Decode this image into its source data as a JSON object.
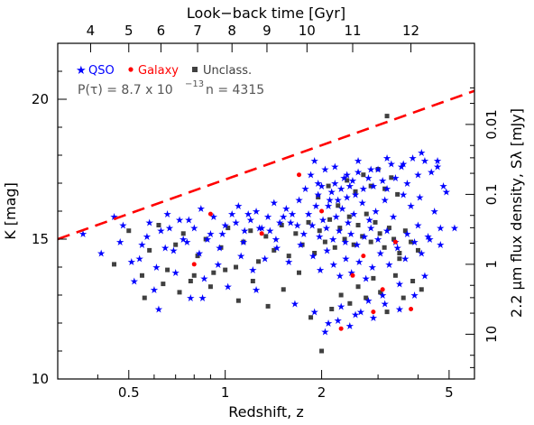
{
  "chart_data": {
    "type": "scatter",
    "title": "",
    "xlabel": "Redshift, z",
    "ylabel": "K [mag]",
    "top_label": "Look−back time [Gyr]",
    "right_label": "2.2 μm flux density, Sλ [mJy]",
    "x_scale": "log",
    "xlim": [
      0.3,
      6.0
    ],
    "ylim": [
      10,
      22
    ],
    "y_inverted": false,
    "x_ticks": [
      0.5,
      1,
      2,
      5
    ],
    "x_tick_labels": [
      "0.5",
      "1",
      "2",
      "5"
    ],
    "y_ticks": [
      10,
      15,
      20
    ],
    "y_tick_labels": [
      "10",
      "15",
      "20"
    ],
    "top_ticks": [
      4,
      5,
      6,
      7,
      8,
      9,
      10,
      11,
      12
    ],
    "top_tick_labels": [
      "4",
      "5",
      "6",
      "7",
      "8",
      "9",
      "10",
      "11",
      "12"
    ],
    "top_tick_redshifts": [
      0.38,
      0.5,
      0.63,
      0.82,
      1.05,
      1.35,
      1.8,
      2.5,
      3.8
    ],
    "right_ticks_mjy": [
      0.01,
      0.1,
      1,
      10
    ],
    "right_tick_labels": [
      "0.01",
      "0.1",
      "1",
      "10"
    ],
    "right_tick_kmag": [
      19.1,
      16.6,
      14.1,
      11.6
    ],
    "legend": [
      {
        "label": "QSO",
        "marker": "star",
        "color": "#0000ff"
      },
      {
        "label": "Galaxy",
        "marker": "dot",
        "color": "#ff0000"
      },
      {
        "label": "Unclass.",
        "marker": "square",
        "color": "#404040"
      }
    ],
    "legend_placement": "top-left",
    "annotation": {
      "p_text": "P(τ) = 8.7 x 10",
      "p_exp": "−13",
      "n_text": "n = 4315"
    },
    "limit_line": {
      "style": "dashed",
      "color": "#ff0000",
      "points": [
        [
          0.3,
          15.0
        ],
        [
          6.0,
          20.3
        ]
      ]
    },
    "grid": false,
    "series": [
      {
        "name": "QSO",
        "color": "#0000ff",
        "marker": "star",
        "x": [
          0.36,
          0.41,
          0.45,
          0.48,
          0.51,
          0.55,
          0.58,
          0.61,
          0.63,
          0.66,
          0.69,
          0.72,
          0.76,
          0.8,
          0.84,
          0.88,
          0.92,
          0.96,
          1.0,
          1.05,
          1.1,
          1.15,
          1.2,
          1.25,
          1.3,
          1.36,
          1.42,
          1.48,
          1.55,
          1.62,
          1.7,
          1.78,
          1.85,
          1.9,
          1.95,
          2.0,
          2.05,
          2.1,
          2.15,
          2.2,
          2.25,
          2.3,
          2.35,
          2.4,
          2.45,
          2.5,
          2.55,
          2.6,
          2.7,
          2.8,
          2.9,
          3.0,
          3.1,
          3.2,
          3.3,
          3.4,
          3.55,
          3.7,
          3.85,
          4.0,
          4.2,
          4.4,
          4.6,
          4.8,
          5.2,
          0.52,
          0.6,
          0.7,
          0.78,
          0.86,
          0.95,
          1.02,
          1.12,
          1.22,
          1.33,
          1.45,
          1.58,
          1.72,
          1.88,
          1.98,
          2.08,
          2.18,
          2.28,
          2.38,
          2.48,
          2.62,
          2.75,
          2.88,
          3.05,
          3.25,
          3.45,
          3.65,
          3.9,
          4.1,
          4.35,
          4.7,
          0.47,
          0.57,
          0.67,
          0.77,
          0.9,
          1.08,
          1.18,
          1.38,
          1.52,
          1.68,
          1.82,
          1.92,
          2.02,
          2.12,
          2.22,
          2.32,
          2.42,
          2.52,
          2.68,
          2.82,
          2.95,
          3.15,
          3.35,
          3.6,
          3.8,
          4.05,
          4.5,
          4.9,
          0.54,
          0.65,
          0.74,
          0.83,
          0.98,
          1.14,
          1.28,
          1.44,
          1.6,
          1.76,
          1.87,
          1.97,
          2.07,
          2.17,
          2.27,
          2.37,
          2.47,
          2.58,
          2.72,
          2.85,
          3.0,
          3.2,
          3.4,
          3.7,
          4.0,
          4.3,
          4.7,
          0.62,
          0.85,
          1.25,
          1.65,
          1.9,
          2.1,
          2.3,
          2.55,
          2.8,
          3.1,
          3.5,
          4.2,
          2.05,
          2.25,
          2.45,
          2.65,
          2.9,
          3.15,
          3.5,
          3.9,
          1.95,
          2.2,
          2.4,
          2.6,
          2.85,
          3.2,
          3.6,
          4.1,
          4.6
        ],
        "y": [
          15.2,
          14.5,
          15.8,
          15.5,
          14.2,
          14.8,
          15.6,
          14.0,
          15.3,
          15.9,
          14.6,
          15.7,
          14.9,
          15.4,
          16.1,
          15.0,
          15.8,
          14.7,
          15.5,
          15.9,
          16.2,
          15.3,
          15.7,
          16.0,
          15.4,
          15.8,
          16.3,
          15.6,
          16.1,
          15.9,
          16.4,
          16.8,
          17.3,
          17.8,
          16.6,
          16.9,
          17.5,
          16.2,
          16.7,
          17.0,
          16.4,
          16.8,
          17.2,
          16.5,
          16.9,
          17.1,
          16.6,
          17.4,
          16.8,
          17.2,
          16.9,
          17.5,
          17.1,
          16.8,
          17.7,
          17.2,
          17.6,
          17.0,
          17.9,
          17.3,
          17.8,
          17.4,
          17.6,
          16.9,
          15.4,
          13.5,
          13.2,
          13.8,
          12.9,
          13.6,
          14.1,
          13.3,
          14.4,
          13.9,
          14.3,
          14.7,
          14.2,
          14.8,
          14.4,
          13.9,
          14.6,
          14.1,
          13.7,
          14.3,
          13.8,
          14.2,
          13.6,
          14.0,
          14.5,
          14.1,
          14.7,
          14.3,
          14.9,
          14.5,
          15.0,
          14.8,
          14.9,
          15.1,
          15.4,
          15.7,
          15.2,
          15.6,
          15.9,
          15.3,
          15.8,
          15.5,
          15.9,
          16.2,
          15.7,
          16.4,
          15.8,
          16.1,
          15.6,
          15.9,
          16.3,
          15.7,
          16.0,
          16.4,
          15.8,
          16.6,
          16.2,
          16.5,
          16.0,
          16.7,
          14.3,
          14.7,
          15.0,
          14.5,
          15.2,
          14.9,
          15.4,
          15.0,
          15.6,
          15.2,
          15.5,
          15.1,
          15.4,
          15.0,
          15.3,
          14.9,
          15.2,
          14.8,
          15.1,
          15.4,
          15.0,
          15.3,
          14.9,
          15.2,
          15.5,
          15.1,
          15.4,
          12.5,
          12.9,
          13.2,
          12.7,
          12.4,
          12.0,
          12.6,
          12.3,
          12.8,
          13.0,
          13.4,
          13.7,
          11.7,
          12.1,
          11.9,
          12.4,
          12.2,
          12.7,
          12.5,
          13.0,
          17.0,
          17.6,
          17.3,
          17.8,
          17.5,
          17.9,
          17.7,
          18.1,
          17.8
        ]
      },
      {
        "name": "Galaxy",
        "color": "#ff0000",
        "marker": "dot",
        "x": [
          0.8,
          0.9,
          1.3,
          1.7,
          2.0,
          2.3,
          2.5,
          2.7,
          2.9,
          3.1,
          3.4,
          3.8
        ],
        "y": [
          14.1,
          15.9,
          15.2,
          17.3,
          16.0,
          11.8,
          13.7,
          14.4,
          12.4,
          13.2,
          14.9,
          12.5
        ]
      },
      {
        "name": "Unclass.",
        "color": "#404040",
        "marker": "square",
        "x": [
          0.45,
          0.5,
          0.55,
          0.58,
          0.62,
          0.66,
          0.7,
          0.74,
          0.78,
          0.82,
          0.87,
          0.92,
          0.97,
          1.02,
          1.08,
          1.14,
          1.2,
          1.27,
          1.34,
          1.42,
          1.5,
          1.58,
          1.66,
          1.74,
          1.82,
          1.9,
          1.97,
          2.05,
          2.12,
          2.2,
          2.28,
          2.36,
          2.44,
          2.52,
          2.6,
          2.68,
          2.76,
          2.85,
          2.94,
          3.04,
          3.14,
          3.25,
          3.36,
          3.5,
          3.65,
          3.8,
          4.0,
          0.56,
          0.64,
          0.72,
          0.8,
          0.9,
          1.0,
          1.1,
          1.22,
          1.36,
          1.52,
          1.7,
          1.85,
          2.0,
          2.15,
          2.3,
          2.45,
          2.6,
          2.75,
          2.9,
          3.05,
          3.2,
          3.4,
          3.6,
          3.85,
          4.1,
          1.95,
          2.1,
          2.25,
          2.4,
          2.55,
          2.7,
          2.85,
          3.0,
          3.15,
          3.3,
          3.45,
          3.2,
          3.5
        ],
        "y": [
          14.1,
          15.3,
          13.7,
          14.6,
          15.5,
          13.9,
          14.8,
          15.2,
          13.5,
          14.4,
          15.0,
          13.8,
          14.7,
          15.4,
          14.0,
          14.9,
          15.3,
          14.2,
          15.1,
          14.6,
          15.5,
          14.4,
          15.2,
          14.8,
          15.6,
          14.5,
          15.3,
          14.9,
          15.7,
          14.7,
          15.4,
          15.0,
          15.8,
          14.8,
          15.5,
          15.1,
          15.9,
          14.9,
          15.6,
          15.2,
          14.7,
          15.4,
          15.0,
          14.5,
          15.3,
          14.9,
          14.6,
          12.9,
          13.4,
          13.1,
          13.7,
          13.3,
          13.9,
          12.8,
          13.5,
          12.6,
          13.2,
          13.8,
          12.2,
          11.0,
          12.5,
          13.0,
          12.7,
          13.3,
          12.9,
          13.6,
          13.1,
          12.4,
          13.7,
          12.9,
          13.5,
          13.2,
          16.5,
          16.9,
          16.2,
          17.1,
          16.7,
          17.3,
          16.9,
          17.5,
          16.8,
          17.2,
          16.6,
          19.4,
          14.3
        ]
      }
    ]
  }
}
